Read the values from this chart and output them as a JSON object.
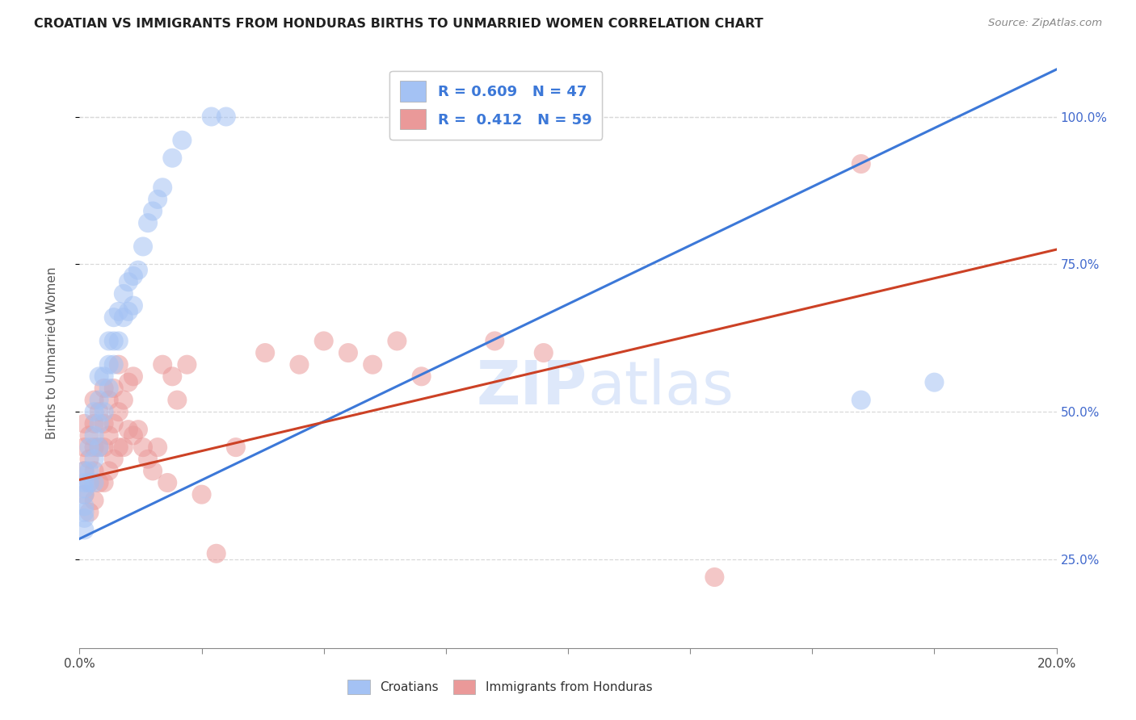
{
  "title": "CROATIAN VS IMMIGRANTS FROM HONDURAS BIRTHS TO UNMARRIED WOMEN CORRELATION CHART",
  "source": "Source: ZipAtlas.com",
  "ylabel": "Births to Unmarried Women",
  "legend_croatians": "Croatians",
  "legend_honduras": "Immigrants from Honduras",
  "r_croatian": 0.609,
  "n_croatian": 47,
  "r_honduras": 0.412,
  "n_honduras": 59,
  "blue_color": "#a4c2f4",
  "pink_color": "#ea9999",
  "blue_line_color": "#3c78d8",
  "pink_line_color": "#cc4125",
  "bg_color": "#ffffff",
  "grid_color": "#d9d9d9",
  "title_color": "#212121",
  "right_tick_color": "#4169cd",
  "watermark_color": "#c9daf8",
  "xlim": [
    0.0,
    0.2
  ],
  "ylim": [
    0.1,
    1.1
  ],
  "xtick_positions": [
    0.0,
    0.025,
    0.05,
    0.075,
    0.1,
    0.125,
    0.15,
    0.175,
    0.2
  ],
  "ytick_positions": [
    0.25,
    0.5,
    0.75,
    1.0
  ],
  "ytick_labels": [
    "25.0%",
    "50.0%",
    "75.0%",
    "100.0%"
  ],
  "blue_line_x": [
    0.0,
    0.2
  ],
  "blue_line_y": [
    0.285,
    1.08
  ],
  "pink_line_x": [
    0.0,
    0.2
  ],
  "pink_line_y": [
    0.385,
    0.775
  ],
  "croatian_x": [
    0.001,
    0.001,
    0.001,
    0.001,
    0.001,
    0.001,
    0.001,
    0.001,
    0.002,
    0.002,
    0.002,
    0.003,
    0.003,
    0.003,
    0.003,
    0.004,
    0.004,
    0.004,
    0.004,
    0.005,
    0.005,
    0.006,
    0.006,
    0.006,
    0.007,
    0.007,
    0.007,
    0.008,
    0.008,
    0.009,
    0.009,
    0.01,
    0.01,
    0.011,
    0.011,
    0.012,
    0.013,
    0.014,
    0.015,
    0.016,
    0.017,
    0.019,
    0.021,
    0.027,
    0.03,
    0.16,
    0.175
  ],
  "croatian_y": [
    0.3,
    0.32,
    0.33,
    0.34,
    0.36,
    0.37,
    0.38,
    0.4,
    0.38,
    0.4,
    0.44,
    0.38,
    0.42,
    0.46,
    0.5,
    0.44,
    0.48,
    0.52,
    0.56,
    0.5,
    0.56,
    0.54,
    0.58,
    0.62,
    0.58,
    0.62,
    0.66,
    0.62,
    0.67,
    0.66,
    0.7,
    0.67,
    0.72,
    0.68,
    0.73,
    0.74,
    0.78,
    0.82,
    0.84,
    0.86,
    0.88,
    0.93,
    0.96,
    1.0,
    1.0,
    0.52,
    0.55
  ],
  "honduras_x": [
    0.001,
    0.001,
    0.001,
    0.001,
    0.002,
    0.002,
    0.002,
    0.002,
    0.003,
    0.003,
    0.003,
    0.003,
    0.003,
    0.004,
    0.004,
    0.004,
    0.005,
    0.005,
    0.005,
    0.005,
    0.006,
    0.006,
    0.006,
    0.007,
    0.007,
    0.007,
    0.008,
    0.008,
    0.008,
    0.009,
    0.009,
    0.01,
    0.01,
    0.011,
    0.011,
    0.012,
    0.013,
    0.014,
    0.015,
    0.016,
    0.017,
    0.018,
    0.019,
    0.02,
    0.022,
    0.025,
    0.028,
    0.032,
    0.038,
    0.045,
    0.05,
    0.055,
    0.06,
    0.065,
    0.07,
    0.085,
    0.095,
    0.13,
    0.16
  ],
  "honduras_y": [
    0.36,
    0.4,
    0.44,
    0.48,
    0.33,
    0.38,
    0.42,
    0.46,
    0.35,
    0.4,
    0.44,
    0.48,
    0.52,
    0.38,
    0.44,
    0.5,
    0.38,
    0.44,
    0.48,
    0.54,
    0.4,
    0.46,
    0.52,
    0.42,
    0.48,
    0.54,
    0.44,
    0.5,
    0.58,
    0.44,
    0.52,
    0.47,
    0.55,
    0.46,
    0.56,
    0.47,
    0.44,
    0.42,
    0.4,
    0.44,
    0.58,
    0.38,
    0.56,
    0.52,
    0.58,
    0.36,
    0.26,
    0.44,
    0.6,
    0.58,
    0.62,
    0.6,
    0.58,
    0.62,
    0.56,
    0.62,
    0.6,
    0.22,
    0.92
  ]
}
